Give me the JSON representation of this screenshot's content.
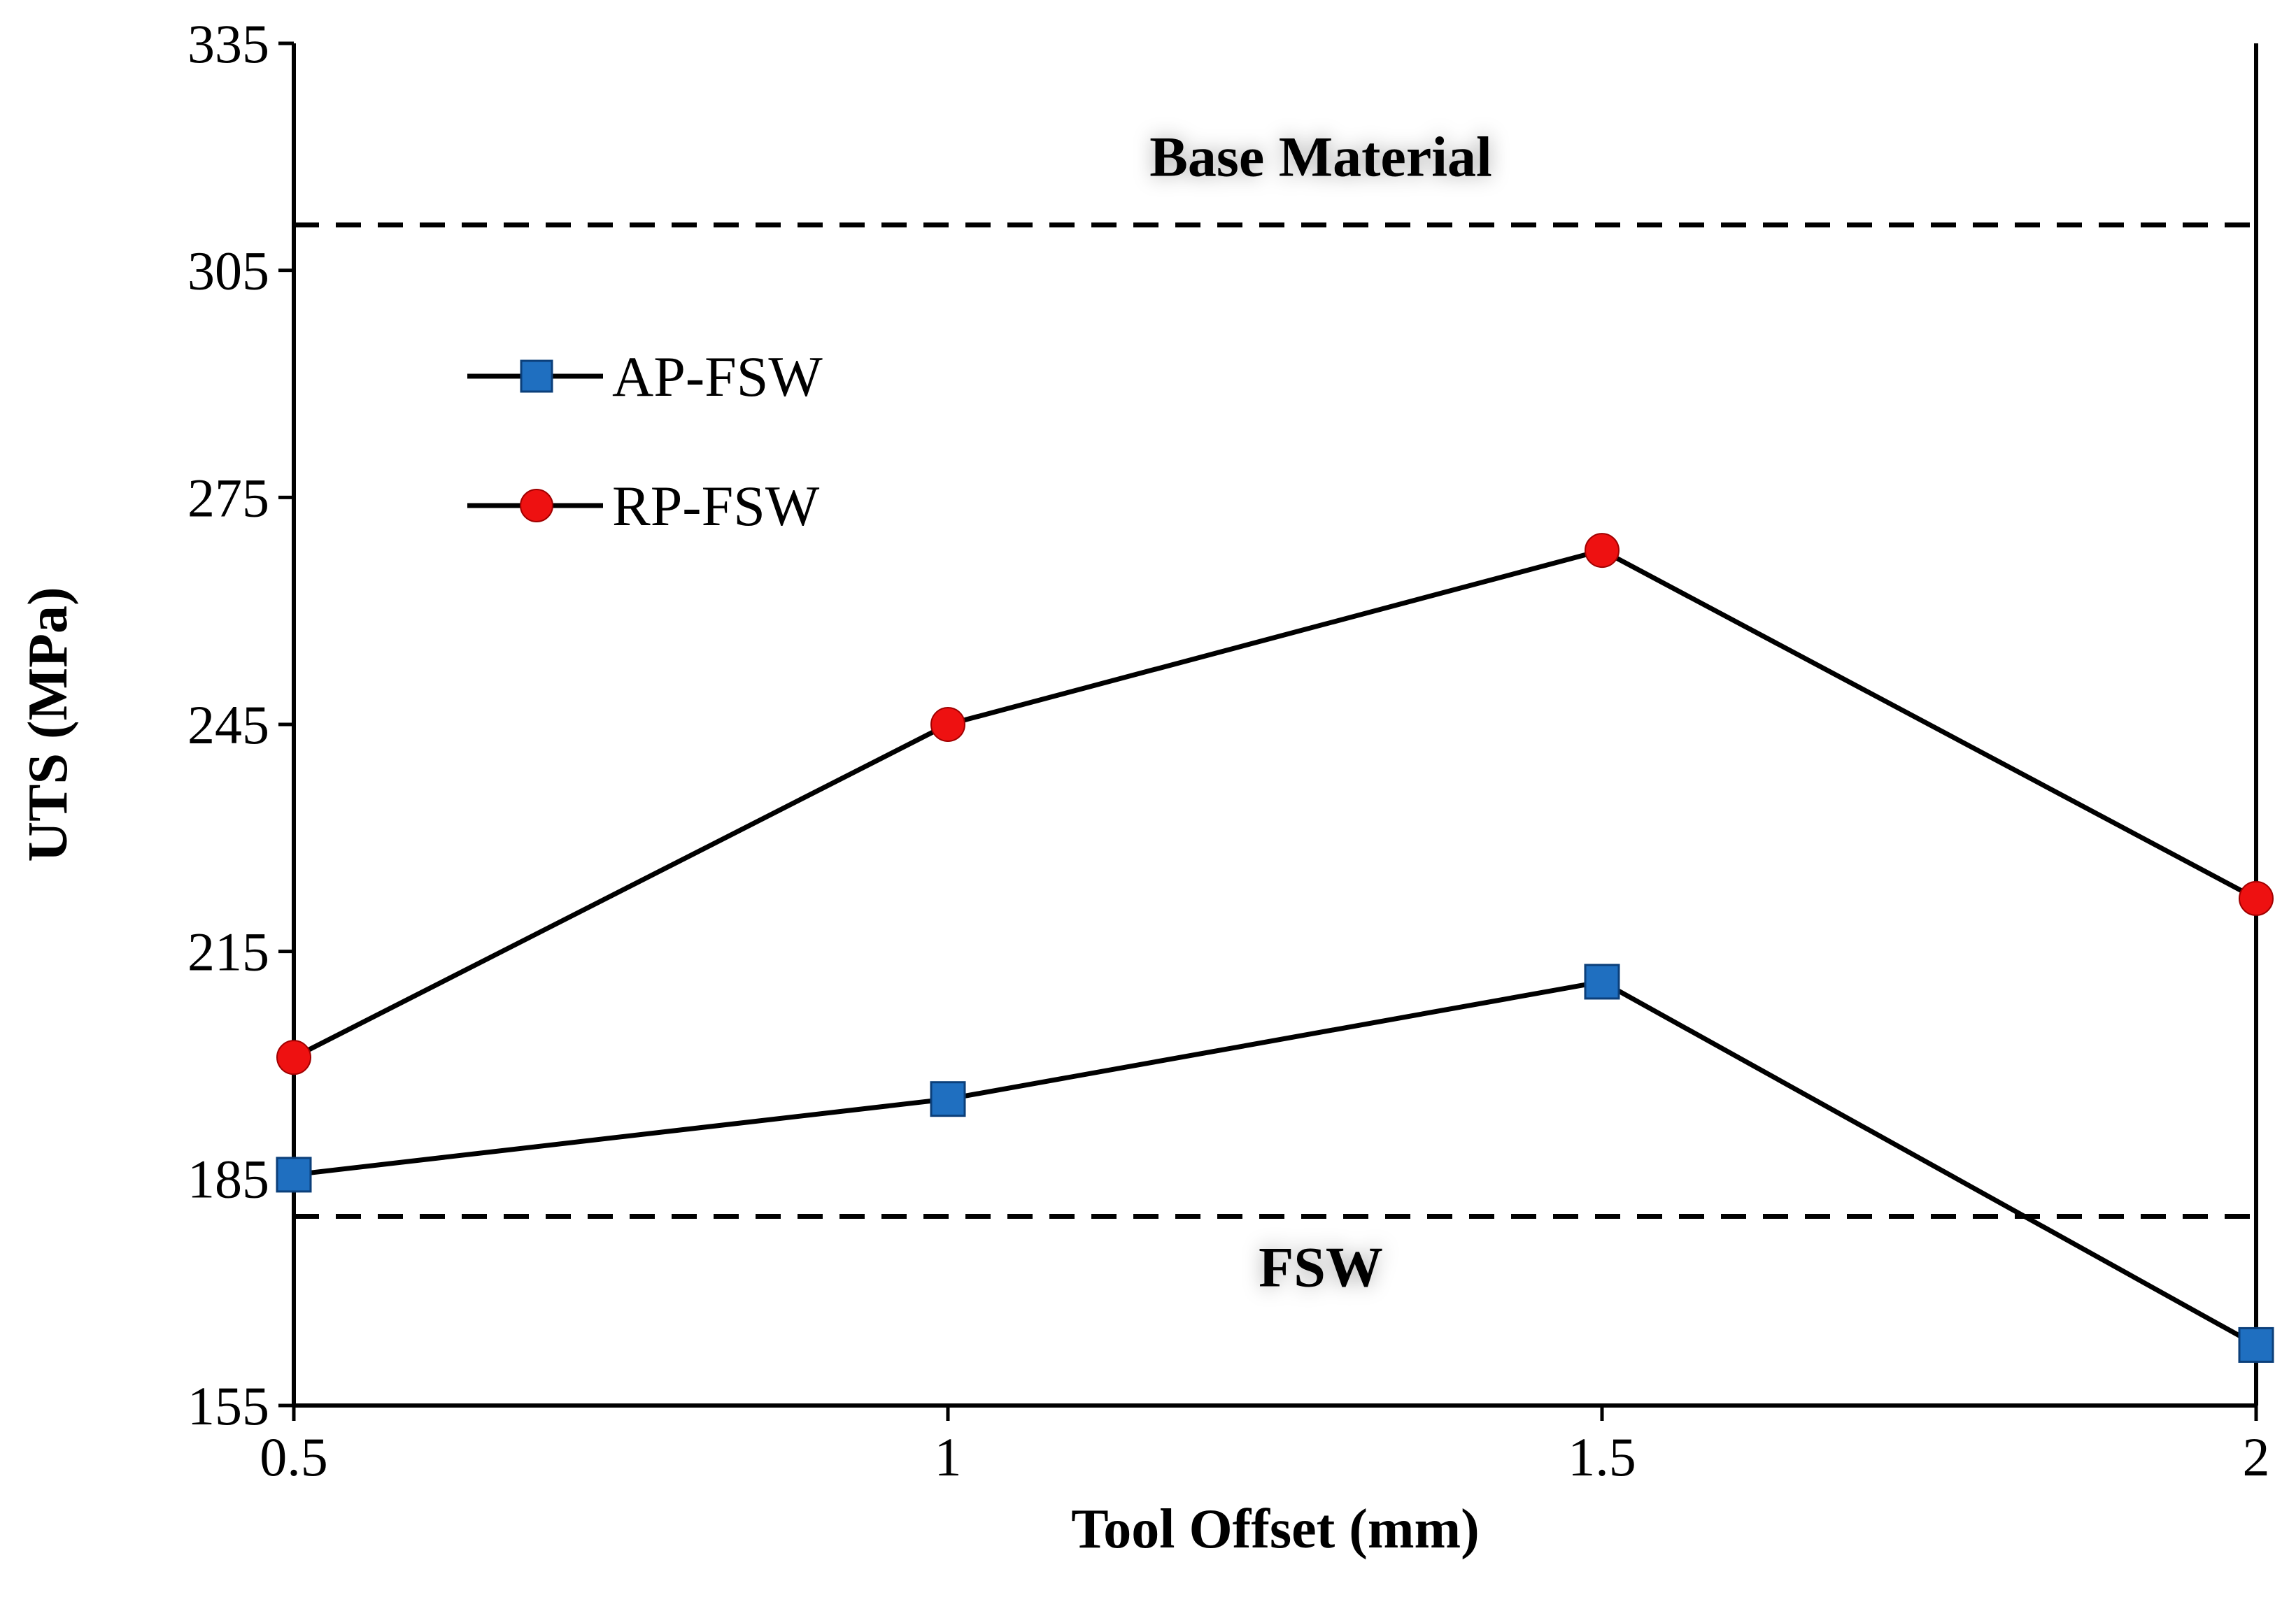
{
  "chart_data": {
    "type": "line",
    "title": "",
    "xlabel": "Tool Offset (mm)",
    "ylabel": "UTS (MPa)",
    "x": [
      0.5,
      1,
      1.5,
      2
    ],
    "x_tick_labels": [
      "0.5",
      "1",
      "1.5",
      "2"
    ],
    "y_ticks": [
      155,
      185,
      215,
      245,
      275,
      305,
      335
    ],
    "xlim": [
      0.5,
      2
    ],
    "ylim": [
      155,
      335
    ],
    "grid": false,
    "legend_position": "upper-left",
    "series": [
      {
        "name": "AP-FSW",
        "marker": "square",
        "color": "#1f6fc0",
        "values": [
          185.5,
          195.5,
          211,
          163
        ]
      },
      {
        "name": "RP-FSW",
        "marker": "circle",
        "color": "#ee1111",
        "values": [
          201,
          245,
          268,
          222
        ]
      }
    ],
    "reference_lines": [
      {
        "label": "Base Material",
        "value": 311,
        "style": "dashed"
      },
      {
        "label": "FSW",
        "value": 180,
        "style": "dashed"
      }
    ]
  }
}
